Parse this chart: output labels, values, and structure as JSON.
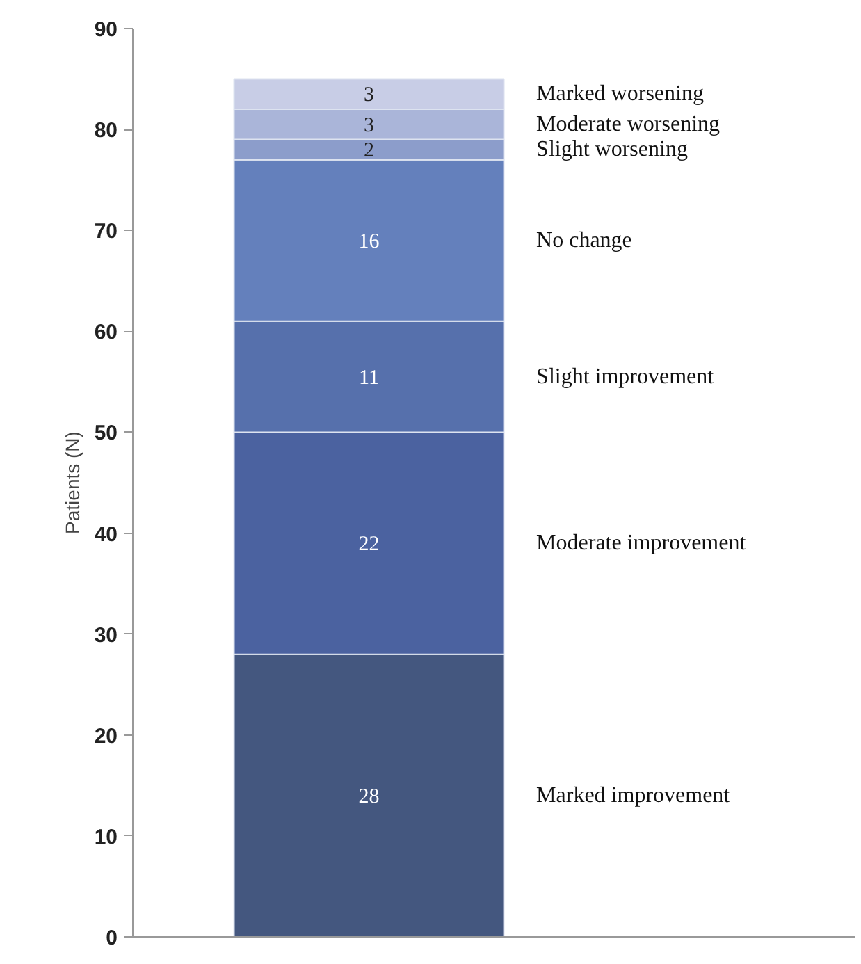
{
  "chart_data": {
    "type": "bar",
    "stacked": true,
    "ylabel": "Patients (N)",
    "categories": [
      null
    ],
    "ylim": [
      0,
      90
    ],
    "yticks": [
      0,
      10,
      20,
      30,
      40,
      50,
      60,
      70,
      80,
      90
    ],
    "grid": false,
    "data_labels": true,
    "tick_labels": "y",
    "series": [
      {
        "name": "Marked improvement",
        "color": "#44577f",
        "values": [
          28
        ]
      },
      {
        "name": "Moderate improvement",
        "color": "#4b62a0",
        "values": [
          22
        ]
      },
      {
        "name": "Slight improvement",
        "color": "#5670ac",
        "values": [
          11
        ]
      },
      {
        "name": "No change",
        "color": "#6480bc",
        "values": [
          16
        ]
      },
      {
        "name": "Slight worsening",
        "color": "#8c9dcb",
        "values": [
          2
        ]
      },
      {
        "name": "Moderate worsening",
        "color": "#aab5d9",
        "values": [
          3
        ]
      },
      {
        "name": "Marked worsening",
        "color": "#c8cde6",
        "values": [
          3
        ]
      }
    ]
  }
}
